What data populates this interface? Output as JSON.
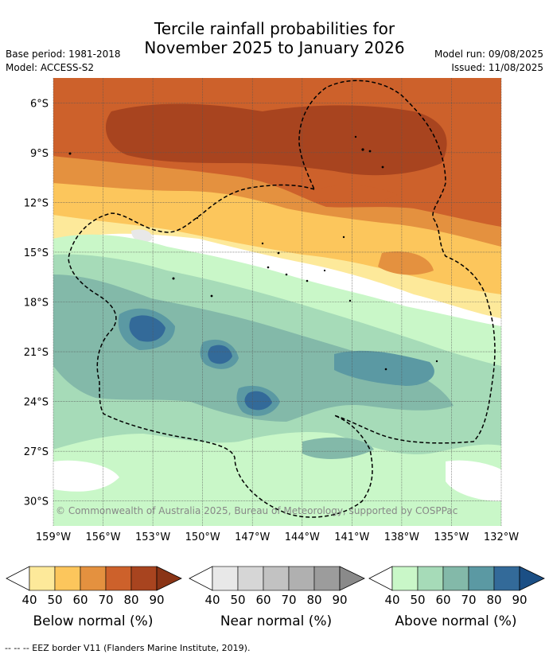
{
  "title": {
    "line1": "Tercile rainfall probabilities for",
    "line2": "November 2025 to January 2026"
  },
  "info": {
    "base_period": "Base period: 1981-2018",
    "model": "Model: ACCESS-S2",
    "model_run": "Model run: 09/08/2025",
    "issued": "Issued: 11/08/2025"
  },
  "map": {
    "lat_labels": [
      "6°S",
      "9°S",
      "12°S",
      "15°S",
      "18°S",
      "21°S",
      "24°S",
      "27°S",
      "30°S"
    ],
    "lat_values": [
      -6,
      -9,
      -12,
      -15,
      -18,
      -21,
      -24,
      -27,
      -30
    ],
    "lon_labels": [
      "159°W",
      "156°W",
      "153°W",
      "150°W",
      "147°W",
      "144°W",
      "141°W",
      "138°W",
      "135°W",
      "132°W"
    ],
    "lon_values": [
      -159,
      -156,
      -153,
      -150,
      -147,
      -144,
      -141,
      -138,
      -135,
      -132
    ],
    "lat_range": [
      -4.5,
      -31.5
    ],
    "lon_range": [
      -159,
      -132
    ],
    "copyright": "© Commonwealth of Australia 2025, Bureau of Meteorology, supported by COSPPac"
  },
  "legends": [
    {
      "label": "Below normal (%)",
      "ticks": [
        "40",
        "50",
        "60",
        "70",
        "80",
        "90"
      ],
      "colors": [
        "#fde99a",
        "#fcc65c",
        "#e4913f",
        "#cd612b",
        "#a8441f",
        "#8a3416"
      ]
    },
    {
      "label": "Near normal (%)",
      "ticks": [
        "40",
        "50",
        "60",
        "70",
        "80",
        "90"
      ],
      "colors": [
        "#e8e8e8",
        "#d6d6d6",
        "#c2c2c2",
        "#b0b0b0",
        "#9c9c9c",
        "#8a8a8a"
      ]
    },
    {
      "label": "Above normal (%)",
      "ticks": [
        "40",
        "50",
        "60",
        "70",
        "80",
        "90"
      ],
      "colors": [
        "#c9f7c8",
        "#a6dbb8",
        "#83b9a9",
        "#5b99a3",
        "#336a99",
        "#1b4f85"
      ]
    }
  ],
  "footer": "--  --  -- EEZ border V11 (Flanders Marine Institute, 2019)."
}
